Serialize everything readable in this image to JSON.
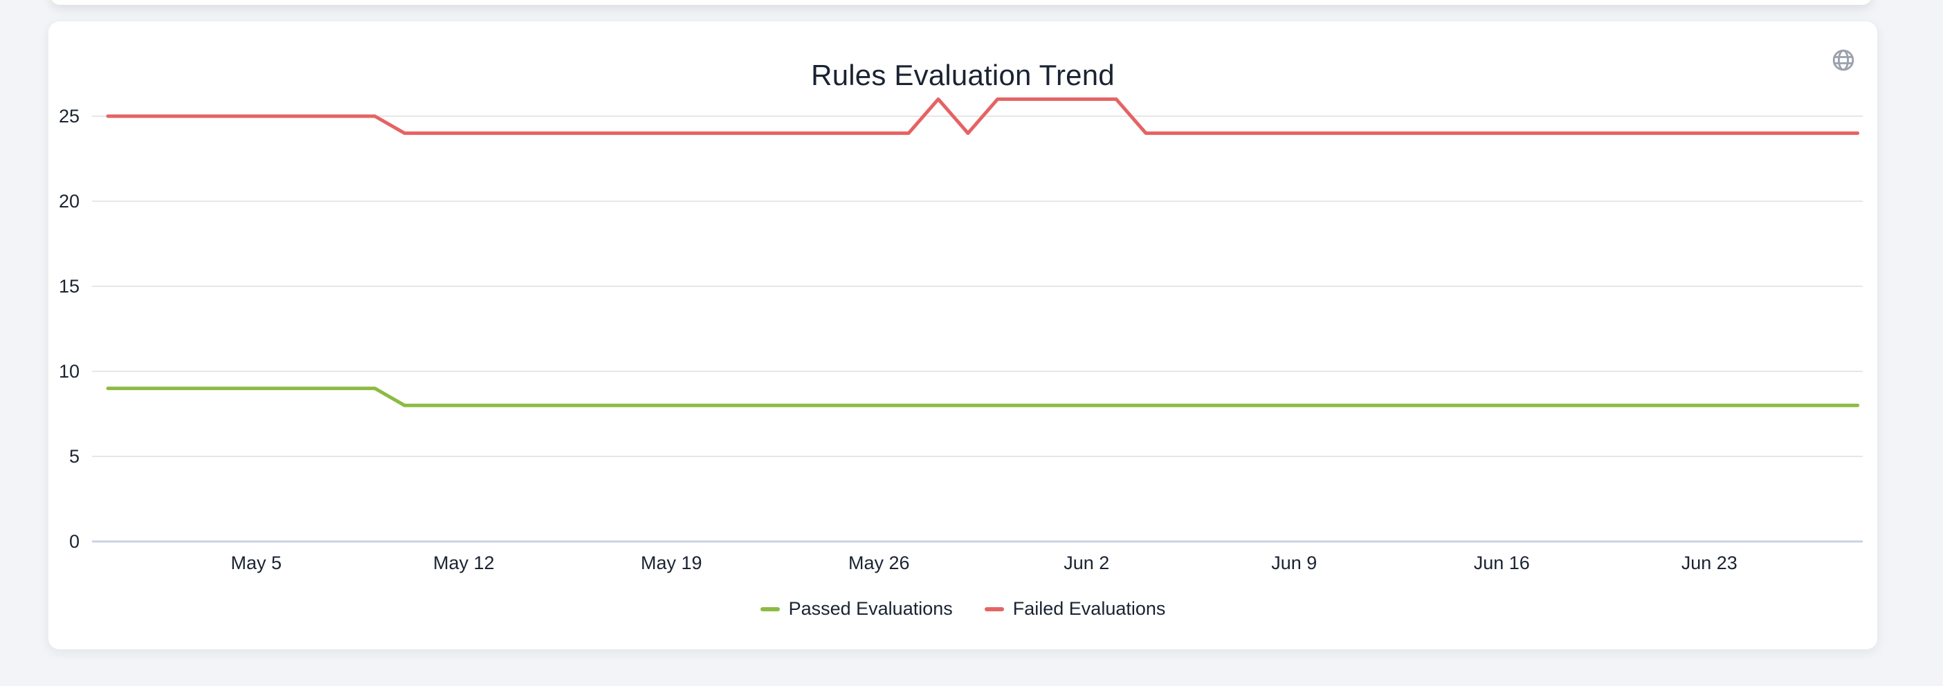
{
  "colors": {
    "page_background": "#F2F4F7",
    "card_background": "#FFFFFF",
    "text": "#1A2332",
    "gridline": "#E7E7E7",
    "axis_line": "#C9D2E4",
    "globe_icon": "#9AA1AC",
    "passed_series": "#8CBB42",
    "failed_series": "#E56363"
  },
  "chart_data": {
    "type": "line",
    "title": "Rules Evaluation Trend",
    "x_first_point": "Apr 30",
    "x_last_point": "Jun 28",
    "x_points": 60,
    "x_tick_labels": [
      "May 5",
      "May 12",
      "May 19",
      "May 26",
      "Jun 2",
      "Jun 9",
      "Jun 16",
      "Jun 23"
    ],
    "x_tick_day_indices": [
      5,
      12,
      19,
      26,
      33,
      40,
      47,
      54
    ],
    "y_ticks": [
      0,
      5,
      10,
      15,
      20,
      25
    ],
    "ylim": [
      0,
      25
    ],
    "grid": "horizontal",
    "legend_position": "bottom-center",
    "series": [
      {
        "name": "Passed Evaluations",
        "color": "#8CBB42",
        "values": [
          9,
          9,
          9,
          9,
          9,
          9,
          9,
          9,
          9,
          9,
          8,
          8,
          8,
          8,
          8,
          8,
          8,
          8,
          8,
          8,
          8,
          8,
          8,
          8,
          8,
          8,
          8,
          8,
          8,
          8,
          8,
          8,
          8,
          8,
          8,
          8,
          8,
          8,
          8,
          8,
          8,
          8,
          8,
          8,
          8,
          8,
          8,
          8,
          8,
          8,
          8,
          8,
          8,
          8,
          8,
          8,
          8,
          8,
          8,
          8
        ]
      },
      {
        "name": "Failed Evaluations",
        "color": "#E56363",
        "values": [
          25,
          25,
          25,
          25,
          25,
          25,
          25,
          25,
          25,
          25,
          24,
          24,
          24,
          24,
          24,
          24,
          24,
          24,
          24,
          24,
          24,
          24,
          24,
          24,
          24,
          24,
          24,
          24,
          26,
          24,
          26,
          26,
          26,
          26,
          26,
          24,
          24,
          24,
          24,
          24,
          24,
          24,
          24,
          24,
          24,
          24,
          24,
          24,
          24,
          24,
          24,
          24,
          24,
          24,
          24,
          24,
          24,
          24,
          24,
          24
        ]
      }
    ]
  }
}
